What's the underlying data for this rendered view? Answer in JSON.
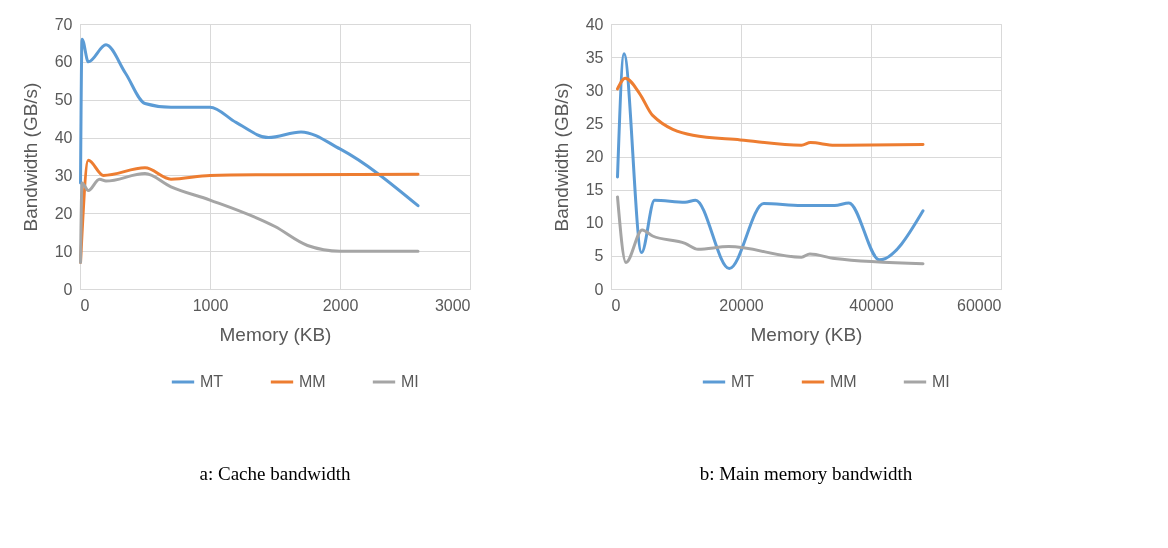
{
  "chart_data": [
    {
      "type": "line",
      "title": "a: Cache bandwidth",
      "xlabel": "Memory (KB)",
      "ylabel": "Bandwidth (GB/s)",
      "xlim": [
        0,
        3000
      ],
      "xticks": [
        0,
        1000,
        2000,
        3000
      ],
      "ylim": [
        0,
        70
      ],
      "yticks": [
        0,
        10,
        20,
        30,
        40,
        50,
        60,
        70
      ],
      "grid": true,
      "legend": "bottom",
      "marker": "none",
      "line_style": "solid",
      "series": [
        {
          "name": "MT",
          "color": "#5b9bd5",
          "x": [
            4,
            16,
            64,
            200,
            350,
            500,
            700,
            1000,
            1200,
            1450,
            1700,
            2000,
            2600
          ],
          "values": [
            28,
            66,
            60,
            64.5,
            57,
            49,
            48,
            48,
            44,
            40,
            41.5,
            37,
            22
          ]
        },
        {
          "name": "MM",
          "color": "#ed7d31",
          "x": [
            4,
            64,
            180,
            500,
            700,
            1000,
            1500,
            2600
          ],
          "values": [
            7,
            34,
            30,
            32,
            29,
            30,
            30.2,
            30.3
          ]
        },
        {
          "name": "MI",
          "color": "#a5a5a5",
          "x": [
            4,
            16,
            64,
            150,
            200,
            500,
            700,
            1000,
            1500,
            1750,
            2000,
            2600
          ],
          "values": [
            7,
            28,
            26,
            29,
            28.5,
            30.5,
            27,
            23.5,
            16.5,
            11.5,
            10,
            10
          ]
        }
      ]
    },
    {
      "type": "line",
      "title": "b: Main memory bandwidth",
      "xlabel": "Memory (KB)",
      "ylabel": "Bandwidth (GB/s)",
      "xlim": [
        0,
        60000
      ],
      "xticks": [
        0,
        20000,
        40000,
        60000
      ],
      "ylim": [
        0,
        40
      ],
      "yticks": [
        0,
        5,
        10,
        15,
        20,
        25,
        30,
        35,
        40
      ],
      "grid": true,
      "legend": "bottom",
      "marker": "none",
      "line_style": "solid",
      "series": [
        {
          "name": "MT",
          "color": "#5b9bd5",
          "x": [
            1000,
            2000,
            4700,
            6700,
            11400,
            13000,
            18200,
            23500,
            29300,
            34400,
            36600,
            41300,
            48000
          ],
          "values": [
            16.9,
            35.5,
            5.5,
            13.4,
            13.1,
            13.4,
            3.1,
            12.9,
            12.6,
            12.6,
            13,
            4.4,
            11.8
          ]
        },
        {
          "name": "MM",
          "color": "#ed7d31",
          "x": [
            1000,
            2200,
            4400,
            6400,
            12600,
            19900,
            29300,
            30700,
            34400,
            48000
          ],
          "values": [
            30.2,
            31.8,
            29.5,
            26.2,
            23.2,
            22.5,
            21.7,
            22.1,
            21.7,
            21.8
          ]
        },
        {
          "name": "MI",
          "color": "#a5a5a5",
          "x": [
            1000,
            2300,
            4800,
            6400,
            11400,
            13400,
            18100,
            29300,
            30600,
            34400,
            48000
          ],
          "values": [
            13.9,
            4.0,
            8.9,
            8.0,
            6.9,
            6.0,
            6.4,
            4.8,
            5.3,
            4.6,
            3.8
          ]
        }
      ]
    }
  ]
}
